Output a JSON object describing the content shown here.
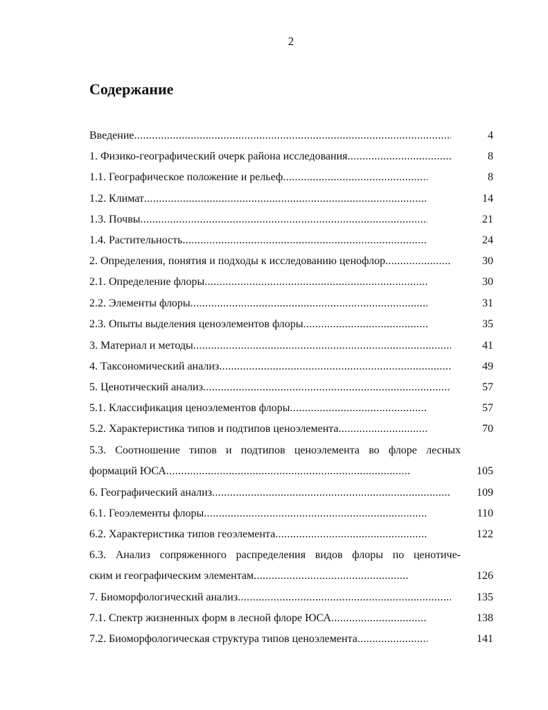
{
  "page_number": "2",
  "title": "Содержание",
  "entries": [
    {
      "label": "Введение",
      "page": "4"
    },
    {
      "label": "1. Физико-географический очерк района исследования",
      "page": "8"
    },
    {
      "label": "1.1. Географическое положение и рельеф",
      "page": "8"
    },
    {
      "label": "1.2. Климат",
      "page": "14"
    },
    {
      "label": "1.3. Почвы",
      "page": "21"
    },
    {
      "label": "1.4. Растительность",
      "page": "24"
    },
    {
      "label": "2. Определения, понятия и подходы к исследованию ценофлор",
      "page": "30"
    },
    {
      "label": "2.1. Определение флоры",
      "page": "30"
    },
    {
      "label": "2.2. Элементы флоры",
      "page": "31"
    },
    {
      "label": "2.3. Опыты выделения ценоэлементов флоры",
      "page": "35"
    },
    {
      "label": "3. Материал и методы",
      "page": "41"
    },
    {
      "label": "4. Таксономический анализ",
      "page": "49"
    },
    {
      "label": "5. Ценотический анализ",
      "page": "57"
    },
    {
      "label": "5.1. Классификация ценоэлементов флоры",
      "page": "57"
    },
    {
      "label": "5.2. Характеристика типов и подтипов ценоэлемента",
      "page": "70"
    },
    {
      "label_line1": "5.3. Соотношение типов и подтипов ценоэлемента во флоре лесных",
      "label": "формаций ЮСА",
      "page": "105"
    },
    {
      "label": "6. Географический анализ",
      "page": "109"
    },
    {
      "label": "6.1. Геоэлементы флоры",
      "page": "110"
    },
    {
      "label": "6.2. Характеристика типов геоэлемента",
      "page": "122"
    },
    {
      "label_line1": "6.3. Анализ сопряженного распределения видов флоры по ценотиче-",
      "label": "ским и географическим элементам",
      "page": "126"
    },
    {
      "label": "7. Биоморфологический анализ",
      "page": "135"
    },
    {
      "label": "7.1. Спектр жизненных форм в лесной флоре ЮСА",
      "page": "138"
    },
    {
      "label": "7.2. Биоморфологическая структура типов ценоэлемента",
      "page": "141"
    }
  ]
}
